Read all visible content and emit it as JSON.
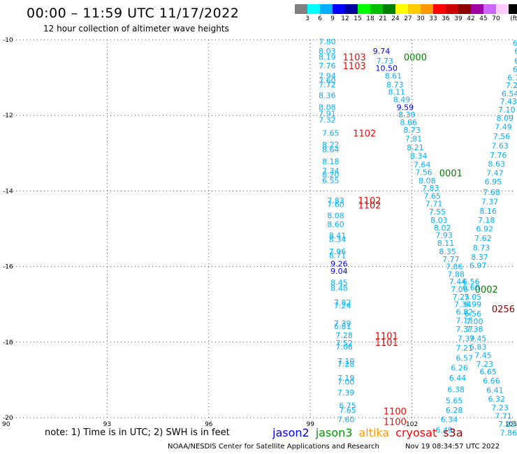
{
  "title": "00:00 – 11:59 UTC 11/17/2022",
  "subtitle": "12 hour collection of altimeter wave heights",
  "legend": {
    "unit": "(ft)",
    "colors": [
      "#808080",
      "#00ffff",
      "#00b0ff",
      "#0000ff",
      "#0000a0",
      "#00ff00",
      "#00c000",
      "#008000",
      "#ffff00",
      "#ffcc00",
      "#ff9900",
      "#ff0000",
      "#cc0000",
      "#900000",
      "#a000a0",
      "#cc66ff",
      "#ffccff",
      "#000000"
    ],
    "ticks": [
      "3",
      "6",
      "9",
      "12",
      "15",
      "18",
      "21",
      "24",
      "27",
      "30",
      "33",
      "36",
      "39",
      "42",
      "45",
      "70"
    ]
  },
  "note": "note: 1) Time is in UTC; 2) SWH is in feet",
  "satellites": [
    {
      "name": "jason2",
      "color": "#0000ff"
    },
    {
      "name": "jason3",
      "color": "#009900"
    },
    {
      "name": "altika",
      "color": "#ff9900"
    },
    {
      "name": "cryosat",
      "color": "#ff0000"
    },
    {
      "name": "s3a",
      "color": "#990000"
    }
  ],
  "credit": "NOAA/NESDIS Center for Satellite Applications and Research",
  "timestamp": "Nov 19 08:34:57 UTC 2022",
  "chart_data": {
    "type": "scatter",
    "x_axis": {
      "range": [
        90,
        105
      ],
      "ticks": [
        "90",
        "93",
        "96",
        "99",
        "102",
        "105"
      ]
    },
    "y_axis": {
      "range": [
        -20,
        -10
      ],
      "ticks": [
        "-10",
        "-12",
        "-14",
        "-16",
        "-18",
        "-20"
      ]
    },
    "grid": true,
    "points": [
      {
        "x": 99.5,
        "y": -10.05,
        "t": "7.80",
        "c": "#00b0ff"
      },
      {
        "x": 99.5,
        "y": -10.3,
        "t": "8.03",
        "c": "#00b0ff"
      },
      {
        "x": 99.5,
        "y": -10.45,
        "t": "8.19",
        "c": "#00b0ff"
      },
      {
        "x": 99.5,
        "y": -10.68,
        "t": "7.76",
        "c": "#00b0ff"
      },
      {
        "x": 99.5,
        "y": -10.95,
        "t": "7.94",
        "c": "#00b0ff"
      },
      {
        "x": 99.5,
        "y": -11.07,
        "t": "7.60",
        "c": "#00b0ff"
      },
      {
        "x": 99.5,
        "y": -11.18,
        "t": "7.72",
        "c": "#00b0ff"
      },
      {
        "x": 99.5,
        "y": -11.47,
        "t": "8.36",
        "c": "#00b0ff"
      },
      {
        "x": 99.5,
        "y": -11.78,
        "t": "8.08",
        "c": "#00b0ff"
      },
      {
        "x": 99.5,
        "y": -11.95,
        "t": "7.91",
        "c": "#00b0ff"
      },
      {
        "x": 99.5,
        "y": -12.12,
        "t": "7.32",
        "c": "#00b0ff"
      },
      {
        "x": 99.6,
        "y": -12.47,
        "t": "7.65",
        "c": "#00b0ff"
      },
      {
        "x": 99.6,
        "y": -12.77,
        "t": "8.22",
        "c": "#00b0ff"
      },
      {
        "x": 99.6,
        "y": -12.9,
        "t": "8.64",
        "c": "#00b0ff"
      },
      {
        "x": 99.6,
        "y": -13.22,
        "t": "8.18",
        "c": "#00b0ff"
      },
      {
        "x": 99.6,
        "y": -13.47,
        "t": "7.34",
        "c": "#00b0ff"
      },
      {
        "x": 99.6,
        "y": -13.57,
        "t": "8.20",
        "c": "#00b0ff"
      },
      {
        "x": 99.6,
        "y": -13.72,
        "t": "6.55",
        "c": "#00b0ff"
      },
      {
        "x": 99.75,
        "y": -14.25,
        "t": "7.83",
        "c": "#00b0ff"
      },
      {
        "x": 99.75,
        "y": -14.35,
        "t": "7.60",
        "c": "#00b0ff"
      },
      {
        "x": 99.75,
        "y": -14.65,
        "t": "8.08",
        "c": "#00b0ff"
      },
      {
        "x": 99.75,
        "y": -14.88,
        "t": "8.60",
        "c": "#00b0ff"
      },
      {
        "x": 99.8,
        "y": -15.18,
        "t": "8.41",
        "c": "#00b0ff"
      },
      {
        "x": 99.8,
        "y": -15.28,
        "t": "8.34",
        "c": "#00b0ff"
      },
      {
        "x": 99.8,
        "y": -15.6,
        "t": "7.96",
        "c": "#00b0ff"
      },
      {
        "x": 99.8,
        "y": -15.7,
        "t": "8.71",
        "c": "#00b0ff"
      },
      {
        "x": 99.85,
        "y": -15.92,
        "t": "9.26",
        "c": "#0000ff"
      },
      {
        "x": 99.85,
        "y": -16.12,
        "t": "9.04",
        "c": "#0000ff"
      },
      {
        "x": 99.85,
        "y": -16.42,
        "t": "8.45",
        "c": "#00b0ff"
      },
      {
        "x": 99.85,
        "y": -16.57,
        "t": "8.48",
        "c": "#00b0ff"
      },
      {
        "x": 99.95,
        "y": -16.95,
        "t": "7.82",
        "c": "#00b0ff"
      },
      {
        "x": 99.95,
        "y": -17.03,
        "t": "7.24",
        "c": "#00b0ff"
      },
      {
        "x": 99.95,
        "y": -17.5,
        "t": "7.39",
        "c": "#00b0ff"
      },
      {
        "x": 99.95,
        "y": -17.58,
        "t": "6.81",
        "c": "#00b0ff"
      },
      {
        "x": 100.0,
        "y": -17.82,
        "t": "7.28",
        "c": "#00b0ff"
      },
      {
        "x": 100.0,
        "y": -18.02,
        "t": "7.52",
        "c": "#00b0ff"
      },
      {
        "x": 100.0,
        "y": -18.12,
        "t": "7.06",
        "c": "#00b0ff"
      },
      {
        "x": 100.05,
        "y": -18.5,
        "t": "7.10",
        "c": "#00b0ff"
      },
      {
        "x": 100.05,
        "y": -18.58,
        "t": "7.28",
        "c": "#00b0ff"
      },
      {
        "x": 100.05,
        "y": -18.95,
        "t": "7.19",
        "c": "#00b0ff"
      },
      {
        "x": 100.05,
        "y": -19.05,
        "t": "7.00",
        "c": "#00b0ff"
      },
      {
        "x": 100.05,
        "y": -19.33,
        "t": "7.39",
        "c": "#00b0ff"
      },
      {
        "x": 100.1,
        "y": -19.68,
        "t": "6.75",
        "c": "#00b0ff"
      },
      {
        "x": 100.1,
        "y": -19.8,
        "t": "7.65",
        "c": "#00b0ff"
      },
      {
        "x": 100.05,
        "y": -20.05,
        "t": "7.60",
        "c": "#00b0ff"
      },
      {
        "x": 101.1,
        "y": -10.3,
        "t": "9.74",
        "c": "#0000ff"
      },
      {
        "x": 101.2,
        "y": -10.55,
        "t": "7.73",
        "c": "#00b0ff"
      },
      {
        "x": 101.25,
        "y": -10.75,
        "t": "10.50",
        "c": "#0000ff"
      },
      {
        "x": 101.45,
        "y": -10.95,
        "t": "8.61",
        "c": "#00b0ff"
      },
      {
        "x": 101.5,
        "y": -11.18,
        "t": "8.73",
        "c": "#00b0ff"
      },
      {
        "x": 101.55,
        "y": -11.38,
        "t": "8.11",
        "c": "#00b0ff"
      },
      {
        "x": 101.7,
        "y": -11.58,
        "t": "8.49",
        "c": "#00b0ff"
      },
      {
        "x": 101.8,
        "y": -11.78,
        "t": "9.59",
        "c": "#0000ff"
      },
      {
        "x": 101.85,
        "y": -11.98,
        "t": "8.39",
        "c": "#00b0ff"
      },
      {
        "x": 101.9,
        "y": -12.18,
        "t": "8.66",
        "c": "#00b0ff"
      },
      {
        "x": 102.0,
        "y": -12.38,
        "t": "8.73",
        "c": "#00b0ff"
      },
      {
        "x": 102.05,
        "y": -12.62,
        "t": "7.81",
        "c": "#00b0ff"
      },
      {
        "x": 102.1,
        "y": -12.85,
        "t": "8.21",
        "c": "#00b0ff"
      },
      {
        "x": 102.2,
        "y": -13.07,
        "t": "8.34",
        "c": "#00b0ff"
      },
      {
        "x": 102.3,
        "y": -13.3,
        "t": "7.64",
        "c": "#00b0ff"
      },
      {
        "x": 102.35,
        "y": -13.5,
        "t": "7.56",
        "c": "#00b0ff"
      },
      {
        "x": 102.45,
        "y": -13.72,
        "t": "8.08",
        "c": "#00b0ff"
      },
      {
        "x": 102.55,
        "y": -13.92,
        "t": "7.83",
        "c": "#00b0ff"
      },
      {
        "x": 102.6,
        "y": -14.13,
        "t": "7.65",
        "c": "#00b0ff"
      },
      {
        "x": 102.65,
        "y": -14.33,
        "t": "7.71",
        "c": "#00b0ff"
      },
      {
        "x": 102.75,
        "y": -14.55,
        "t": "7.55",
        "c": "#00b0ff"
      },
      {
        "x": 102.8,
        "y": -14.77,
        "t": "8.03",
        "c": "#00b0ff"
      },
      {
        "x": 102.9,
        "y": -14.97,
        "t": "8.02",
        "c": "#00b0ff"
      },
      {
        "x": 102.95,
        "y": -15.17,
        "t": "7.93",
        "c": "#00b0ff"
      },
      {
        "x": 103.0,
        "y": -15.38,
        "t": "8.11",
        "c": "#00b0ff"
      },
      {
        "x": 103.05,
        "y": -15.6,
        "t": "8.35",
        "c": "#00b0ff"
      },
      {
        "x": 103.15,
        "y": -15.8,
        "t": "7.77",
        "c": "#00b0ff"
      },
      {
        "x": 103.25,
        "y": -16.0,
        "t": "7.86",
        "c": "#00b0ff"
      },
      {
        "x": 103.3,
        "y": -16.2,
        "t": "7.88",
        "c": "#00b0ff"
      },
      {
        "x": 103.35,
        "y": -16.4,
        "t": "7.44",
        "c": "#00b0ff"
      },
      {
        "x": 103.4,
        "y": -16.6,
        "t": "7.06",
        "c": "#00b0ff"
      },
      {
        "x": 103.45,
        "y": -16.8,
        "t": "7.25",
        "c": "#00b0ff"
      },
      {
        "x": 103.5,
        "y": -17.0,
        "t": "7.34",
        "c": "#00b0ff"
      },
      {
        "x": 103.55,
        "y": -17.2,
        "t": "6.82",
        "c": "#00b0ff"
      },
      {
        "x": 103.55,
        "y": -17.42,
        "t": "7.13",
        "c": "#00b0ff"
      },
      {
        "x": 103.55,
        "y": -17.65,
        "t": "7.37",
        "c": "#00b0ff"
      },
      {
        "x": 103.6,
        "y": -17.9,
        "t": "7.39",
        "c": "#00b0ff"
      },
      {
        "x": 103.55,
        "y": -18.15,
        "t": "7.21",
        "c": "#00b0ff"
      },
      {
        "x": 103.55,
        "y": -18.42,
        "t": "6.57",
        "c": "#00b0ff"
      },
      {
        "x": 103.4,
        "y": -18.68,
        "t": "6.26",
        "c": "#00b0ff"
      },
      {
        "x": 103.35,
        "y": -18.95,
        "t": "6.44",
        "c": "#00b0ff"
      },
      {
        "x": 103.3,
        "y": -19.25,
        "t": "6.38",
        "c": "#00b0ff"
      },
      {
        "x": 103.25,
        "y": -19.55,
        "t": "5.65",
        "c": "#00b0ff"
      },
      {
        "x": 103.25,
        "y": -19.8,
        "t": "6.28",
        "c": "#00b0ff"
      },
      {
        "x": 103.1,
        "y": -20.05,
        "t": "6.34",
        "c": "#00b0ff"
      },
      {
        "x": 102.95,
        "y": -20.32,
        "t": "6.49",
        "c": "#00b0ff"
      },
      {
        "x": 103.75,
        "y": -16.4,
        "t": "6.56",
        "c": "#00b0ff"
      },
      {
        "x": 103.75,
        "y": -16.55,
        "t": "6.60",
        "c": "#00b0ff"
      },
      {
        "x": 103.8,
        "y": -16.8,
        "t": "7.05",
        "c": "#00b0ff"
      },
      {
        "x": 103.8,
        "y": -17.0,
        "t": "6.99",
        "c": "#00b0ff"
      },
      {
        "x": 103.8,
        "y": -17.25,
        "t": "6.56",
        "c": "#00b0ff"
      },
      {
        "x": 103.85,
        "y": -17.45,
        "t": "7.00",
        "c": "#00b0ff"
      },
      {
        "x": 103.85,
        "y": -17.65,
        "t": "7.38",
        "c": "#00b0ff"
      },
      {
        "x": 103.95,
        "y": -17.9,
        "t": "7.45",
        "c": "#00b0ff"
      },
      {
        "x": 103.95,
        "y": -18.12,
        "t": "6.83",
        "c": "#00b0ff"
      },
      {
        "x": 104.1,
        "y": -18.35,
        "t": "7.45",
        "c": "#00b0ff"
      },
      {
        "x": 104.15,
        "y": -18.58,
        "t": "7.23",
        "c": "#00b0ff"
      },
      {
        "x": 104.25,
        "y": -18.78,
        "t": "6.65",
        "c": "#00b0ff"
      },
      {
        "x": 104.35,
        "y": -19.02,
        "t": "6.66",
        "c": "#00b0ff"
      },
      {
        "x": 104.45,
        "y": -19.27,
        "t": "6.41",
        "c": "#00b0ff"
      },
      {
        "x": 104.5,
        "y": -19.5,
        "t": "6.32",
        "c": "#00b0ff"
      },
      {
        "x": 104.6,
        "y": -19.73,
        "t": "7.23",
        "c": "#00b0ff"
      },
      {
        "x": 104.7,
        "y": -19.95,
        "t": "7.71",
        "c": "#00b0ff"
      },
      {
        "x": 104.8,
        "y": -20.17,
        "t": "7.23",
        "c": "#00b0ff"
      },
      {
        "x": 104.85,
        "y": -20.4,
        "t": "7.86",
        "c": "#00b0ff"
      },
      {
        "x": 105.0,
        "y": -11.0,
        "t": "6.7",
        "c": "#00b0ff"
      },
      {
        "x": 104.95,
        "y": -11.2,
        "t": "7.2",
        "c": "#00b0ff"
      },
      {
        "x": 104.9,
        "y": -11.42,
        "t": "6.54",
        "c": "#00b0ff"
      },
      {
        "x": 104.85,
        "y": -11.63,
        "t": "7.43",
        "c": "#00b0ff"
      },
      {
        "x": 104.8,
        "y": -11.85,
        "t": "7.10",
        "c": "#00b0ff"
      },
      {
        "x": 104.75,
        "y": -12.07,
        "t": "8.09",
        "c": "#00b0ff"
      },
      {
        "x": 104.7,
        "y": -12.3,
        "t": "7.49",
        "c": "#00b0ff"
      },
      {
        "x": 104.65,
        "y": -12.55,
        "t": "7.56",
        "c": "#00b0ff"
      },
      {
        "x": 104.6,
        "y": -12.8,
        "t": "7.63",
        "c": "#00b0ff"
      },
      {
        "x": 104.55,
        "y": -13.05,
        "t": "7.76",
        "c": "#00b0ff"
      },
      {
        "x": 104.5,
        "y": -13.28,
        "t": "8.63",
        "c": "#00b0ff"
      },
      {
        "x": 104.45,
        "y": -13.52,
        "t": "7.47",
        "c": "#00b0ff"
      },
      {
        "x": 104.4,
        "y": -13.75,
        "t": "6.95",
        "c": "#00b0ff"
      },
      {
        "x": 104.35,
        "y": -14.03,
        "t": "7.68",
        "c": "#00b0ff"
      },
      {
        "x": 104.3,
        "y": -14.28,
        "t": "7.37",
        "c": "#00b0ff"
      },
      {
        "x": 104.25,
        "y": -14.53,
        "t": "8.16",
        "c": "#00b0ff"
      },
      {
        "x": 104.2,
        "y": -14.77,
        "t": "7.18",
        "c": "#00b0ff"
      },
      {
        "x": 104.15,
        "y": -15.0,
        "t": "6.92",
        "c": "#00b0ff"
      },
      {
        "x": 104.1,
        "y": -15.25,
        "t": "7.62",
        "c": "#00b0ff"
      },
      {
        "x": 104.05,
        "y": -15.5,
        "t": "8.73",
        "c": "#00b0ff"
      },
      {
        "x": 104.0,
        "y": -15.75,
        "t": "8.37",
        "c": "#00b0ff"
      },
      {
        "x": 103.95,
        "y": -15.97,
        "t": "6.97",
        "c": "#00b0ff"
      },
      {
        "x": 105.05,
        "y": -10.08,
        "t": "6",
        "c": "#00b0ff"
      },
      {
        "x": 105.1,
        "y": -10.3,
        "t": "6",
        "c": "#00b0ff"
      },
      {
        "x": 105.1,
        "y": -10.55,
        "t": "6",
        "c": "#00b0ff"
      },
      {
        "x": 105.05,
        "y": -10.78,
        "t": "6",
        "c": "#00b0ff"
      }
    ],
    "labels": [
      {
        "x": 100.3,
        "y": -10.45,
        "t": "1103",
        "c": "#ff0000"
      },
      {
        "x": 100.3,
        "y": -10.68,
        "t": "1103",
        "c": "#ff0000"
      },
      {
        "x": 100.6,
        "y": -12.47,
        "t": "1102",
        "c": "#ff0000"
      },
      {
        "x": 100.75,
        "y": -14.25,
        "t": "1102",
        "c": "#ff0000"
      },
      {
        "x": 100.75,
        "y": -14.37,
        "t": "1102",
        "c": "#ff0000"
      },
      {
        "x": 101.25,
        "y": -17.83,
        "t": "1101",
        "c": "#ff0000"
      },
      {
        "x": 101.25,
        "y": -18.0,
        "t": "1101",
        "c": "#ff0000"
      },
      {
        "x": 101.5,
        "y": -19.82,
        "t": "1100",
        "c": "#ff0000"
      },
      {
        "x": 101.5,
        "y": -20.1,
        "t": "1100",
        "c": "#ff0000"
      },
      {
        "x": 102.1,
        "y": -10.45,
        "t": "0000",
        "c": "#008000"
      },
      {
        "x": 103.15,
        "y": -13.52,
        "t": "0001",
        "c": "#008000"
      },
      {
        "x": 104.2,
        "y": -16.6,
        "t": "0002",
        "c": "#008000"
      },
      {
        "x": 104.7,
        "y": -17.12,
        "t": "0256",
        "c": "#990000"
      }
    ]
  }
}
